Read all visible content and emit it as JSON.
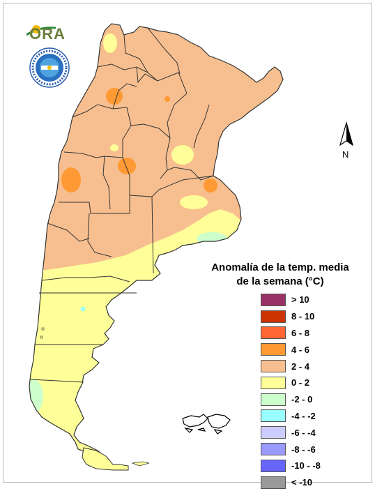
{
  "logo": {
    "text": "ORA"
  },
  "seal": {
    "text": "SERVICIO METEOROLOGICO NACIONAL · ARGENTINA"
  },
  "north_arrow": {
    "label": "N"
  },
  "legend": {
    "title_line1": "Anomalía de la temp. media",
    "title_line2": "de la semana (°C)",
    "items": [
      {
        "label": "> 10",
        "color": "#993366"
      },
      {
        "label": "8 - 10",
        "color": "#cc3300"
      },
      {
        "label": "6 - 8",
        "color": "#ff6633"
      },
      {
        "label": "4 - 6",
        "color": "#ff9933"
      },
      {
        "label": "2 - 4",
        "color": "#f7bf8f"
      },
      {
        "label": "0 - 2",
        "color": "#ffff99"
      },
      {
        "label": "-2 - 0",
        "color": "#ccffcc"
      },
      {
        "label": "-4 - -2",
        "color": "#99ffff"
      },
      {
        "label": "-6 - -4",
        "color": "#ccccff"
      },
      {
        "label": "-8 - -6",
        "color": "#9999ff"
      },
      {
        "label": "-10 - -8",
        "color": "#6666ff"
      },
      {
        "label": "< -10",
        "color": "#999999"
      }
    ]
  },
  "colors": {
    "warm_2_4": "#f7bf8f",
    "warm_4_6": "#ff9933",
    "mild_0_2": "#ffff99",
    "cool_m2_0": "#ccffcc",
    "cool_m4_m2": "#99ffff",
    "borders": "#333333"
  }
}
